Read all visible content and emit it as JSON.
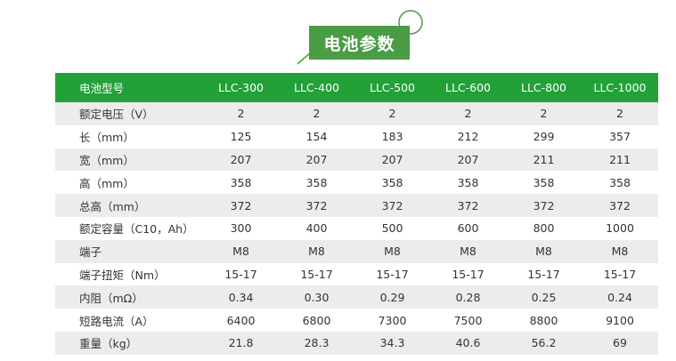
{
  "title": "电池参数",
  "colors": {
    "title_bg": "#4a9c45",
    "header_bg": "#21a138",
    "stripe": "#ececec"
  },
  "table": {
    "header": [
      "电池型号",
      "LLC-300",
      "LLC-400",
      "LLC-500",
      "LLC-600",
      "LLC-800",
      "LLC-1000"
    ],
    "rows": [
      [
        "额定电压（V）",
        "2",
        "2",
        "2",
        "2",
        "2",
        "2"
      ],
      [
        "长（mm）",
        "125",
        "154",
        "183",
        "212",
        "299",
        "357"
      ],
      [
        "宽（mm）",
        "207",
        "207",
        "207",
        "207",
        "211",
        "211"
      ],
      [
        "高（mm）",
        "358",
        "358",
        "358",
        "358",
        "358",
        "358"
      ],
      [
        "总高（mm）",
        "372",
        "372",
        "372",
        "372",
        "372",
        "372"
      ],
      [
        "额定容量（C10，Ah）",
        "300",
        "400",
        "500",
        "600",
        "800",
        "1000"
      ],
      [
        "端子",
        "M8",
        "M8",
        "M8",
        "M8",
        "M8",
        "M8"
      ],
      [
        "端子扭矩（Nm）",
        "15-17",
        "15-17",
        "15-17",
        "15-17",
        "15-17",
        "15-17"
      ],
      [
        "内阻（mΩ）",
        "0.34",
        "0.30",
        "0.29",
        "0.28",
        "0.25",
        "0.24"
      ],
      [
        "短路电流（A）",
        "6400",
        "6800",
        "7300",
        "7500",
        "8800",
        "9100"
      ],
      [
        "重量（kg）",
        "21.8",
        "28.3",
        "34.3",
        "40.6",
        "56.2",
        "69"
      ]
    ]
  }
}
